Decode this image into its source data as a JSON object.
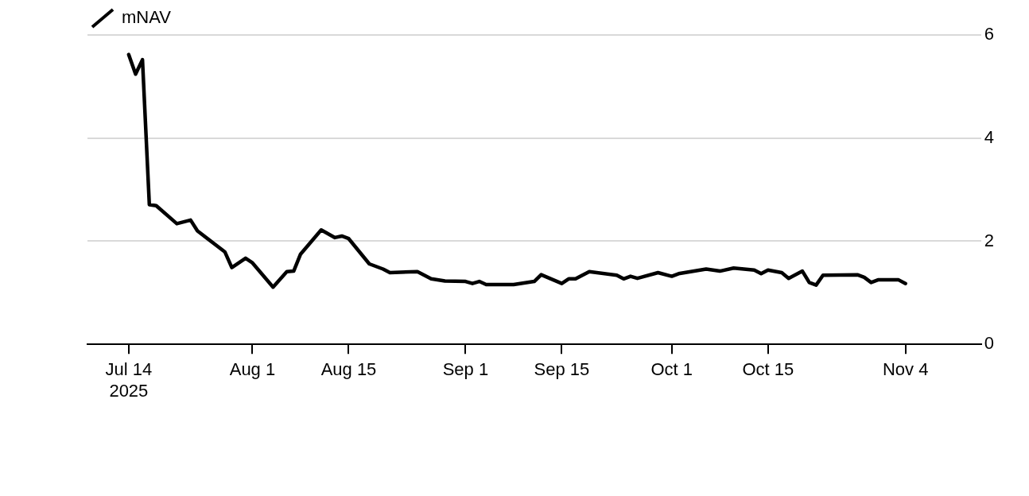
{
  "chart_data": {
    "type": "line",
    "legend": "top left",
    "grid": "y",
    "line_style": "solid",
    "marker": "none",
    "x": [
      "2025-07-14",
      "2025-07-15",
      "2025-07-16",
      "2025-07-17",
      "2025-07-18",
      "2025-07-21",
      "2025-07-23",
      "2025-07-24",
      "2025-07-28",
      "2025-07-29",
      "2025-07-31",
      "2025-08-01",
      "2025-08-04",
      "2025-08-06",
      "2025-08-07",
      "2025-08-08",
      "2025-08-11",
      "2025-08-13",
      "2025-08-14",
      "2025-08-15",
      "2025-08-18",
      "2025-08-20",
      "2025-08-21",
      "2025-08-25",
      "2025-08-27",
      "2025-08-29",
      "2025-09-01",
      "2025-09-02",
      "2025-09-03",
      "2025-09-04",
      "2025-09-08",
      "2025-09-11",
      "2025-09-12",
      "2025-09-15",
      "2025-09-16",
      "2025-09-17",
      "2025-09-19",
      "2025-09-23",
      "2025-09-24",
      "2025-09-25",
      "2025-09-26",
      "2025-09-29",
      "2025-10-01",
      "2025-10-02",
      "2025-10-06",
      "2025-10-08",
      "2025-10-10",
      "2025-10-13",
      "2025-10-14",
      "2025-10-15",
      "2025-10-17",
      "2025-10-18",
      "2025-10-20",
      "2025-10-21",
      "2025-10-22",
      "2025-10-23",
      "2025-10-28",
      "2025-10-29",
      "2025-10-30",
      "2025-10-31",
      "2025-11-03",
      "2025-11-04"
    ],
    "series": [
      {
        "name": "mNAV",
        "color": "#000000",
        "values": [
          5.62,
          5.24,
          5.52,
          2.71,
          2.69,
          2.34,
          2.41,
          2.2,
          1.79,
          1.49,
          1.67,
          1.58,
          1.11,
          1.41,
          1.42,
          1.75,
          2.22,
          2.07,
          2.1,
          2.05,
          1.56,
          1.46,
          1.39,
          1.41,
          1.27,
          1.23,
          1.22,
          1.18,
          1.22,
          1.16,
          1.16,
          1.22,
          1.35,
          1.18,
          1.27,
          1.27,
          1.41,
          1.34,
          1.27,
          1.32,
          1.28,
          1.39,
          1.32,
          1.37,
          1.46,
          1.42,
          1.48,
          1.44,
          1.37,
          1.44,
          1.39,
          1.28,
          1.42,
          1.2,
          1.15,
          1.34,
          1.35,
          1.3,
          1.2,
          1.25,
          1.25,
          1.18
        ]
      }
    ],
    "xlim": [
      "2025-07-08",
      "2025-11-15"
    ],
    "xticks": [
      {
        "value": "2025-07-14",
        "label": "Jul 14\n2025"
      },
      {
        "value": "2025-08-01",
        "label": "Aug 1"
      },
      {
        "value": "2025-08-15",
        "label": "Aug 15"
      },
      {
        "value": "2025-09-01",
        "label": "Sep 1"
      },
      {
        "value": "2025-09-15",
        "label": "Sep 15"
      },
      {
        "value": "2025-10-01",
        "label": "Oct 1"
      },
      {
        "value": "2025-10-15",
        "label": "Oct 15"
      },
      {
        "value": "2025-11-04",
        "label": "Nov 4"
      }
    ],
    "ylim": [
      0,
      6
    ],
    "yticks": [
      0,
      2,
      4,
      6
    ]
  }
}
